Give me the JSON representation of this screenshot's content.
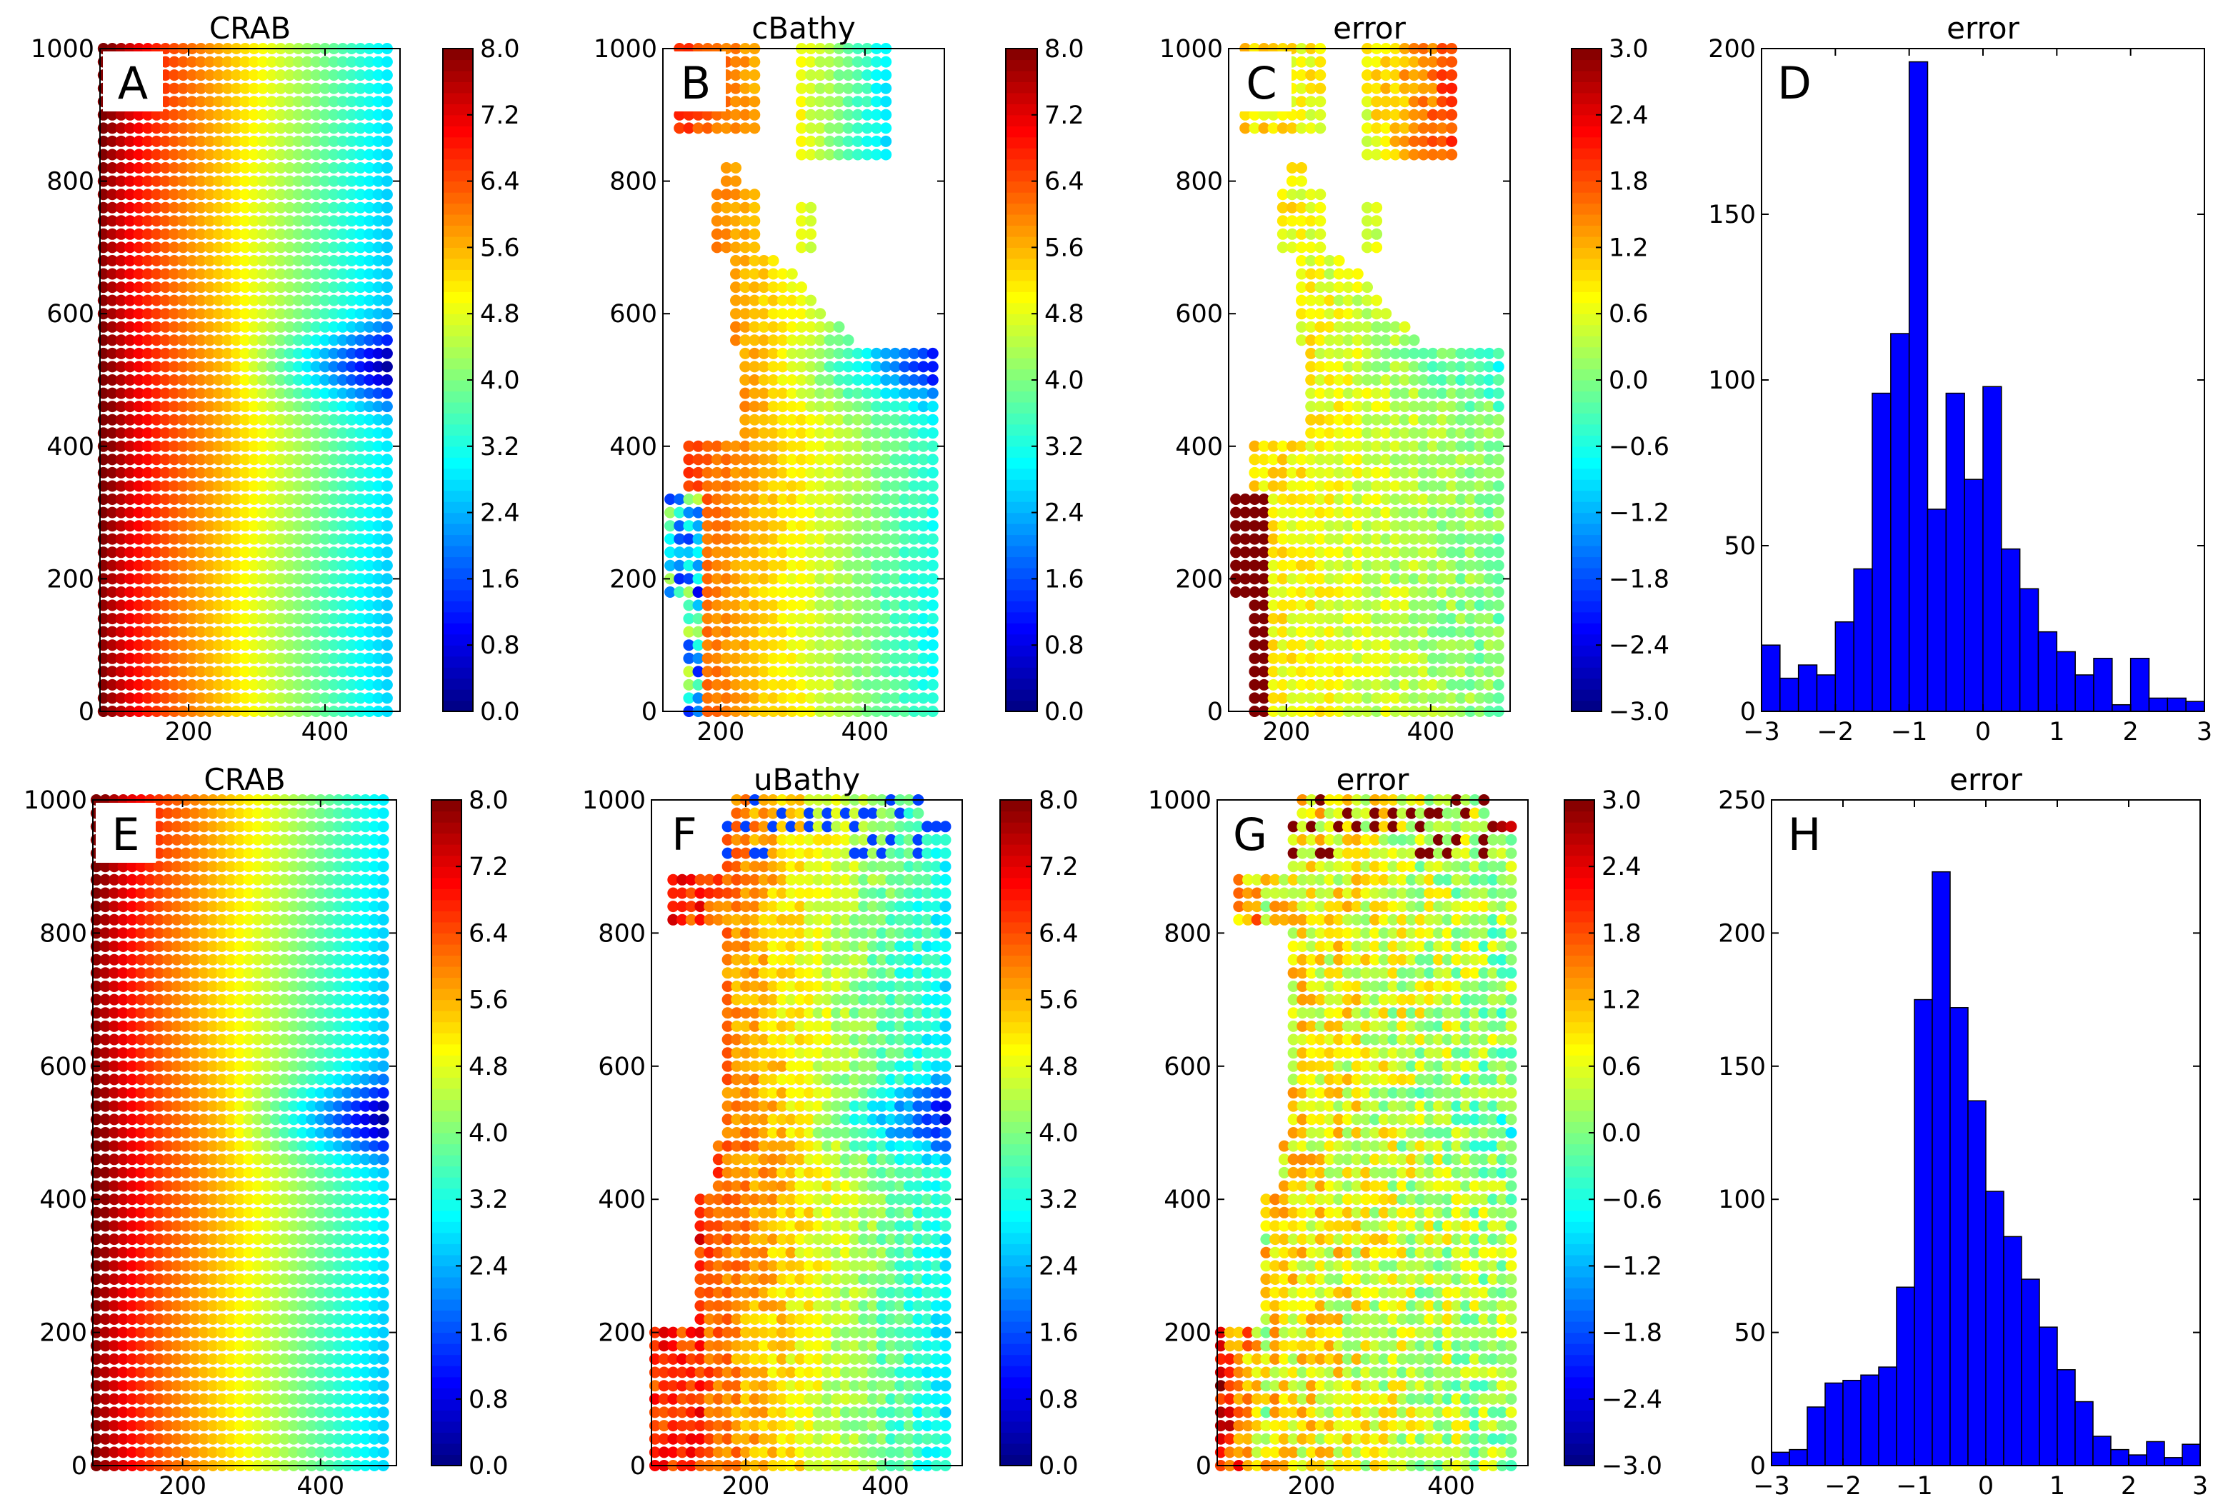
{
  "figure": {
    "description_panels": [
      "A",
      "B",
      "C",
      "D",
      "E",
      "F",
      "G",
      "H"
    ]
  },
  "colors": {
    "hist_bar": "#0000ff",
    "axis": "#000000",
    "label_box": "#ffffff"
  },
  "chart_data": [
    {
      "id": "A",
      "type": "scatter",
      "label": "A",
      "title": "CRAB",
      "xlim": [
        70,
        510
      ],
      "ylim": [
        0,
        1000
      ],
      "xticks": [
        "200",
        "400"
      ],
      "xtick_values": [
        200,
        400
      ],
      "yticks": [
        "0",
        "200",
        "400",
        "600",
        "800",
        "1000"
      ],
      "ytick_values": [
        0,
        200,
        400,
        600,
        800,
        1000
      ],
      "x_range": [
        75,
        495
      ],
      "x_step": 13,
      "y_step": 20,
      "field": "crab",
      "cmap": "jet_r",
      "vmin": 0.0,
      "vmax": 8.0,
      "mask": "full",
      "colorbar": {
        "vmin": 0.0,
        "vmax": 8.0,
        "ticks": [
          "0.0",
          "0.8",
          "1.6",
          "2.4",
          "3.2",
          "4.0",
          "4.8",
          "5.6",
          "6.4",
          "7.2",
          "8.0"
        ]
      }
    },
    {
      "id": "B",
      "type": "scatter",
      "label": "B",
      "title": "cBathy",
      "xlim": [
        120,
        510
      ],
      "ylim": [
        0,
        1000
      ],
      "xticks": [
        "200",
        "400"
      ],
      "xtick_values": [
        200,
        400
      ],
      "yticks": [
        "0",
        "200",
        "400",
        "600",
        "800",
        "1000"
      ],
      "ytick_values": [
        0,
        200,
        400,
        600,
        800,
        1000
      ],
      "x_range": [
        130,
        495
      ],
      "x_step": 13,
      "y_step": 20,
      "field": "cbathy",
      "cmap": "jet_r",
      "vmin": 0.0,
      "vmax": 8.0,
      "mask": "cbathy",
      "colorbar": {
        "vmin": 0.0,
        "vmax": 8.0,
        "ticks": [
          "0.0",
          "0.8",
          "1.6",
          "2.4",
          "3.2",
          "4.0",
          "4.8",
          "5.6",
          "6.4",
          "7.2",
          "8.0"
        ]
      }
    },
    {
      "id": "C",
      "type": "scatter",
      "label": "C",
      "title": "error",
      "xlim": [
        120,
        510
      ],
      "ylim": [
        0,
        1000
      ],
      "xticks": [
        "200",
        "400"
      ],
      "xtick_values": [
        200,
        400
      ],
      "yticks": [
        "0",
        "200",
        "400",
        "600",
        "800",
        "1000"
      ],
      "ytick_values": [
        0,
        200,
        400,
        600,
        800,
        1000
      ],
      "x_range": [
        130,
        495
      ],
      "x_step": 13,
      "y_step": 20,
      "field": "cbathy_err",
      "cmap": "jet_r",
      "vmin": -3.0,
      "vmax": 3.0,
      "mask": "cbathy",
      "colorbar": {
        "vmin": -3.0,
        "vmax": 3.0,
        "ticks": [
          "−3.0",
          "−2.4",
          "−1.8",
          "−1.2",
          "−0.6",
          "0.0",
          "0.6",
          "1.2",
          "1.8",
          "2.4",
          "3.0"
        ]
      }
    },
    {
      "id": "D",
      "type": "bar",
      "label": "D",
      "title": "error",
      "xlim": [
        -3,
        3
      ],
      "ylim": [
        0,
        200
      ],
      "xticks": [
        "−3",
        "−2",
        "−1",
        "0",
        "1",
        "2",
        "3"
      ],
      "xtick_values": [
        -3,
        -2,
        -1,
        0,
        1,
        2,
        3
      ],
      "yticks": [
        "0",
        "50",
        "100",
        "150",
        "200"
      ],
      "ytick_values": [
        0,
        50,
        100,
        150,
        200
      ],
      "bin_edges": [
        -3.0,
        -2.75,
        -2.5,
        -2.25,
        -2.0,
        -1.75,
        -1.5,
        -1.25,
        -1.0,
        -0.75,
        -0.5,
        -0.25,
        0.0,
        0.25,
        0.5,
        0.75,
        1.0,
        1.25,
        1.5,
        1.75,
        2.0,
        2.25,
        2.5,
        2.75,
        3.0
      ],
      "values": [
        20,
        10,
        14,
        11,
        27,
        43,
        96,
        114,
        196,
        61,
        96,
        70,
        98,
        49,
        37,
        24,
        18,
        11,
        16,
        2,
        16,
        4,
        4,
        3
      ]
    },
    {
      "id": "E",
      "type": "scatter",
      "label": "E",
      "title": "CRAB",
      "xlim": [
        70,
        510
      ],
      "ylim": [
        0,
        1000
      ],
      "xticks": [
        "200",
        "400"
      ],
      "xtick_values": [
        200,
        400
      ],
      "yticks": [
        "0",
        "200",
        "400",
        "600",
        "800",
        "1000"
      ],
      "ytick_values": [
        0,
        200,
        400,
        600,
        800,
        1000
      ],
      "x_range": [
        75,
        495
      ],
      "x_step": 13,
      "y_step": 20,
      "field": "crab",
      "cmap": "jet_r",
      "vmin": 0.0,
      "vmax": 8.0,
      "mask": "full",
      "colorbar": {
        "vmin": 0.0,
        "vmax": 8.0,
        "ticks": [
          "0.0",
          "0.8",
          "1.6",
          "2.4",
          "3.2",
          "4.0",
          "4.8",
          "5.6",
          "6.4",
          "7.2",
          "8.0"
        ]
      }
    },
    {
      "id": "F",
      "type": "scatter",
      "label": "F",
      "title": "uBathy",
      "xlim": [
        65,
        510
      ],
      "ylim": [
        0,
        1000
      ],
      "xticks": [
        "200",
        "400"
      ],
      "xtick_values": [
        200,
        400
      ],
      "yticks": [
        "0",
        "200",
        "400",
        "600",
        "800",
        "1000"
      ],
      "ytick_values": [
        0,
        200,
        400,
        600,
        800,
        1000
      ],
      "x_range": [
        70,
        495
      ],
      "x_step": 13,
      "y_step": 20,
      "field": "ubathy",
      "cmap": "jet_r",
      "vmin": 0.0,
      "vmax": 8.0,
      "mask": "ubathy",
      "colorbar": {
        "vmin": 0.0,
        "vmax": 8.0,
        "ticks": [
          "0.0",
          "0.8",
          "1.6",
          "2.4",
          "3.2",
          "4.0",
          "4.8",
          "5.6",
          "6.4",
          "7.2",
          "8.0"
        ]
      }
    },
    {
      "id": "G",
      "type": "scatter",
      "label": "G",
      "title": "error",
      "xlim": [
        65,
        510
      ],
      "ylim": [
        0,
        1000
      ],
      "xticks": [
        "200",
        "400"
      ],
      "xtick_values": [
        200,
        400
      ],
      "yticks": [
        "0",
        "200",
        "400",
        "600",
        "800",
        "1000"
      ],
      "ytick_values": [
        0,
        200,
        400,
        600,
        800,
        1000
      ],
      "x_range": [
        70,
        495
      ],
      "x_step": 13,
      "y_step": 20,
      "field": "ubathy_err",
      "cmap": "jet_r",
      "vmin": -3.0,
      "vmax": 3.0,
      "mask": "ubathy",
      "colorbar": {
        "vmin": -3.0,
        "vmax": 3.0,
        "ticks": [
          "−3.0",
          "−2.4",
          "−1.8",
          "−1.2",
          "−0.6",
          "0.0",
          "0.6",
          "1.2",
          "1.8",
          "2.4",
          "3.0"
        ]
      }
    },
    {
      "id": "H",
      "type": "bar",
      "label": "H",
      "title": "error",
      "xlim": [
        -3,
        3
      ],
      "ylim": [
        0,
        250
      ],
      "xticks": [
        "−3",
        "−2",
        "−1",
        "0",
        "1",
        "2",
        "3"
      ],
      "xtick_values": [
        -3,
        -2,
        -1,
        0,
        1,
        2,
        3
      ],
      "yticks": [
        "0",
        "50",
        "100",
        "150",
        "200",
        "250"
      ],
      "ytick_values": [
        0,
        50,
        100,
        150,
        200,
        250
      ],
      "bin_edges": [
        -3.0,
        -2.75,
        -2.5,
        -2.25,
        -2.0,
        -1.75,
        -1.5,
        -1.25,
        -1.0,
        -0.75,
        -0.5,
        -0.25,
        0.0,
        0.25,
        0.5,
        0.75,
        1.0,
        1.25,
        1.5,
        1.75,
        2.0,
        2.25,
        2.5,
        2.75,
        3.0
      ],
      "values": [
        5,
        6,
        22,
        31,
        32,
        34,
        37,
        67,
        175,
        223,
        172,
        137,
        103,
        86,
        70,
        52,
        36,
        24,
        11,
        6,
        4,
        9,
        3,
        8
      ]
    }
  ]
}
